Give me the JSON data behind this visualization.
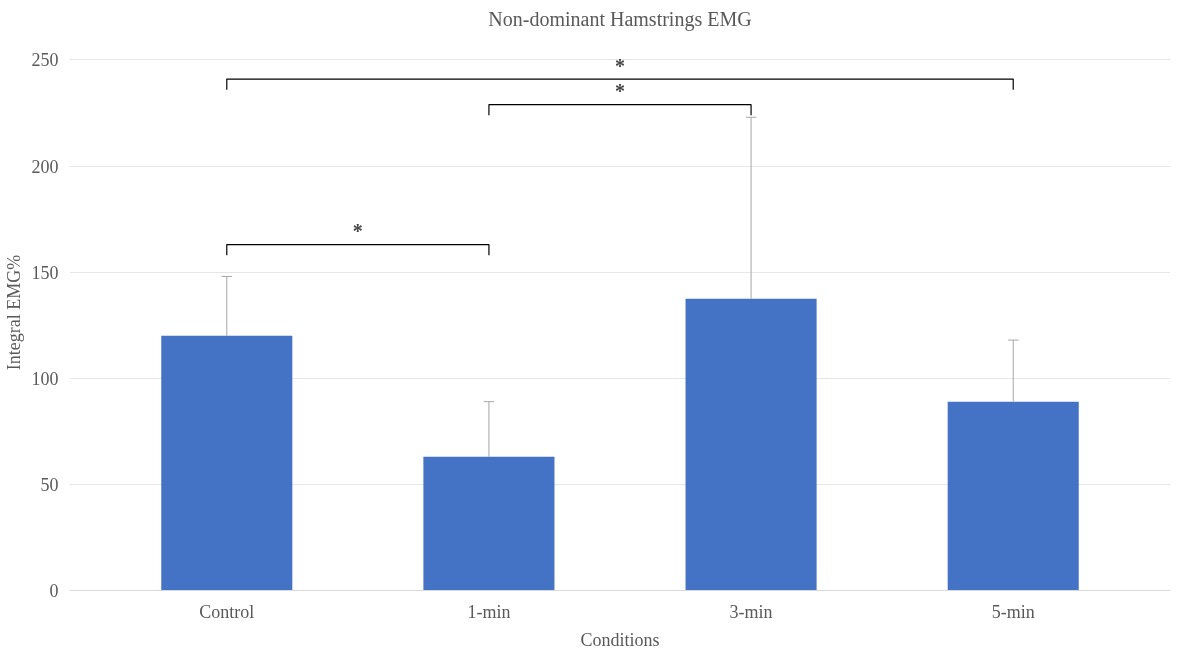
{
  "chart_data": {
    "type": "bar",
    "title": "Non-dominant Hamstrings EMG",
    "xlabel": "Conditions",
    "ylabel": "Integral EMG%",
    "categories": [
      "Control",
      "1-min",
      "3-min",
      "5-min"
    ],
    "values": [
      120,
      63,
      137.5,
      89
    ],
    "errors": [
      [
        120,
        148
      ],
      [
        63,
        89
      ],
      [
        137.5,
        223
      ],
      [
        89,
        118
      ]
    ],
    "color": "#4472c4",
    "ylim": [
      0,
      250
    ],
    "yticks": [
      0,
      50,
      100,
      150,
      200,
      250
    ],
    "grid": "y",
    "annotations": [
      "*",
      "*",
      "*"
    ]
  }
}
